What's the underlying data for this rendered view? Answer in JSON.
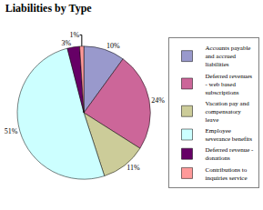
{
  "chart_data": {
    "type": "pie",
    "title": "Liabilities by Type",
    "categories": [
      "Accounts payable\nand accrued\nliabilities",
      "Deferred revenues\n- web based\nsubscriptions",
      "Vacation pay and\ncompensatory\nleave",
      "Employee\nseverance benefits",
      "Deferred revenue -\ndonations",
      "Contributions to\ninquiries service"
    ],
    "values": [
      10,
      24,
      11,
      51,
      3,
      1
    ],
    "value_labels": [
      "10%",
      "24%",
      "11%",
      "51%",
      "3%",
      "1%"
    ],
    "colors": [
      "#9999cc",
      "#cc6699",
      "#cccc99",
      "#ccffff",
      "#660066",
      "#ff9999"
    ],
    "data_labels": true,
    "legend": "right"
  }
}
